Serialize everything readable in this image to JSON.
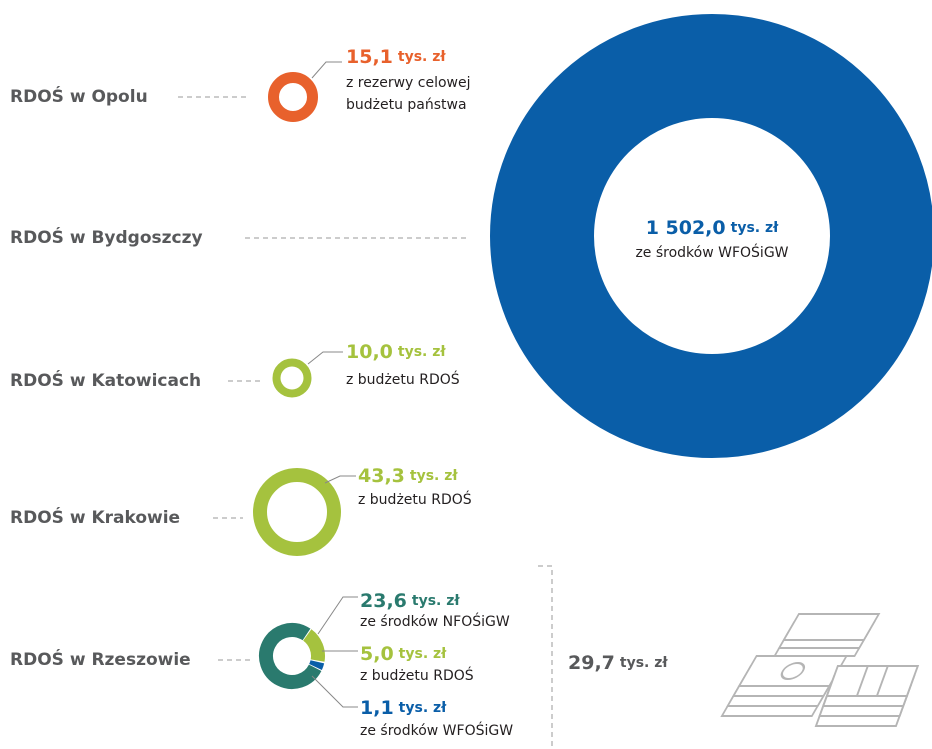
{
  "items": [
    {
      "label": "RDOŚ w Opolu",
      "amount": "15,1",
      "unit": "tys. zł",
      "source": [
        "z rezerwy celowej",
        "budżetu państwa"
      ]
    },
    {
      "label": "RDOŚ w Bydgoszczy",
      "amount": "1 502,0",
      "unit": "tys. zł",
      "source": [
        "ze środków WFOŚiGW"
      ]
    },
    {
      "label": "RDOŚ w Katowicach",
      "amount": "10,0",
      "unit": "tys. zł",
      "source": [
        "z budżetu RDOŚ"
      ]
    },
    {
      "label": "RDOŚ w Krakowie",
      "amount": "43,3",
      "unit": "tys. zł",
      "source": [
        "z budżetu RDOŚ"
      ]
    },
    {
      "label": "RDOŚ w Rzeszowie",
      "parts": [
        {
          "amount": "23,6",
          "unit": "tys. zł",
          "source": "ze środków NFOŚiGW"
        },
        {
          "amount": "5,0",
          "unit": "tys. zł",
          "source": "z budżetu RDOŚ"
        },
        {
          "amount": "1,1",
          "unit": "tys. zł",
          "source": "ze środków WFOŚiGW"
        }
      ]
    }
  ],
  "total": {
    "amount": "29,7",
    "unit": "tys. zł"
  }
}
